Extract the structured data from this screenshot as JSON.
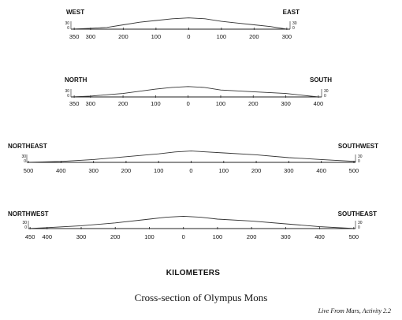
{
  "units_label": "KILOMETERS",
  "caption": "Cross-section of Olympus Mons",
  "credit": "Live From Mars, Activity 2.2",
  "profile_color": "#333333",
  "sections": [
    {
      "left_dir": "WEST",
      "right_dir": "EAST",
      "elev_left": [
        "30",
        "0"
      ],
      "elev_right": [
        "30",
        "0"
      ],
      "ticks": [
        "350",
        "300",
        "200",
        "100",
        "0",
        "100",
        "200",
        "300"
      ],
      "tick_values": [
        -350,
        -300,
        -200,
        -100,
        0,
        100,
        200,
        300
      ],
      "x_range": [
        -360,
        310
      ],
      "profile": [
        [
          -360,
          0
        ],
        [
          -300,
          1
        ],
        [
          -250,
          2
        ],
        [
          -200,
          5
        ],
        [
          -150,
          8
        ],
        [
          -100,
          10
        ],
        [
          -50,
          12
        ],
        [
          0,
          13
        ],
        [
          50,
          12
        ],
        [
          100,
          9
        ],
        [
          150,
          7
        ],
        [
          200,
          5
        ],
        [
          250,
          3
        ],
        [
          300,
          0
        ]
      ]
    },
    {
      "left_dir": "NORTH",
      "right_dir": "SOUTH",
      "elev_left": [
        "30",
        "0"
      ],
      "elev_right": [
        "30",
        "0"
      ],
      "ticks": [
        "350",
        "300",
        "200",
        "100",
        "0",
        "100",
        "200",
        "300",
        "400"
      ],
      "tick_values": [
        -350,
        -300,
        -200,
        -100,
        0,
        100,
        200,
        300,
        400
      ],
      "x_range": [
        -360,
        410
      ],
      "profile": [
        [
          -360,
          0
        ],
        [
          -300,
          1
        ],
        [
          -200,
          4
        ],
        [
          -100,
          9
        ],
        [
          -50,
          11
        ],
        [
          0,
          12
        ],
        [
          50,
          11
        ],
        [
          100,
          8
        ],
        [
          200,
          6
        ],
        [
          300,
          4
        ],
        [
          350,
          2
        ],
        [
          400,
          0
        ]
      ]
    },
    {
      "left_dir": "NORTHEAST",
      "right_dir": "SOUTHWEST",
      "elev_left": [
        "30",
        "0"
      ],
      "elev_right": [
        "30",
        "0"
      ],
      "ticks": [
        "500",
        "400",
        "300",
        "200",
        "100",
        "0",
        "100",
        "200",
        "300",
        "400",
        "500"
      ],
      "tick_values": [
        -500,
        -400,
        -300,
        -200,
        -100,
        0,
        100,
        200,
        300,
        400,
        500
      ],
      "x_range": [
        -505,
        505
      ],
      "profile": [
        [
          -505,
          0
        ],
        [
          -400,
          1
        ],
        [
          -300,
          3
        ],
        [
          -200,
          6
        ],
        [
          -100,
          9
        ],
        [
          -50,
          11
        ],
        [
          0,
          12
        ],
        [
          50,
          11
        ],
        [
          100,
          10
        ],
        [
          200,
          8
        ],
        [
          300,
          5
        ],
        [
          400,
          3
        ],
        [
          505,
          1
        ]
      ]
    },
    {
      "left_dir": "NORTHWEST",
      "right_dir": "SOUTHEAST",
      "elev_left": [
        "30",
        "0"
      ],
      "elev_right": [
        "30",
        "0"
      ],
      "ticks": [
        "450",
        "400",
        "300",
        "200",
        "100",
        "0",
        "100",
        "200",
        "300",
        "400",
        "500"
      ],
      "tick_values": [
        -450,
        -400,
        -300,
        -200,
        -100,
        0,
        100,
        200,
        300,
        400,
        500
      ],
      "x_range": [
        -455,
        505
      ],
      "profile": [
        [
          -455,
          0
        ],
        [
          -400,
          1
        ],
        [
          -300,
          3
        ],
        [
          -200,
          6
        ],
        [
          -100,
          10
        ],
        [
          -50,
          12
        ],
        [
          0,
          13
        ],
        [
          50,
          12
        ],
        [
          100,
          10
        ],
        [
          200,
          8
        ],
        [
          300,
          5
        ],
        [
          400,
          2
        ],
        [
          505,
          0
        ]
      ]
    }
  ]
}
